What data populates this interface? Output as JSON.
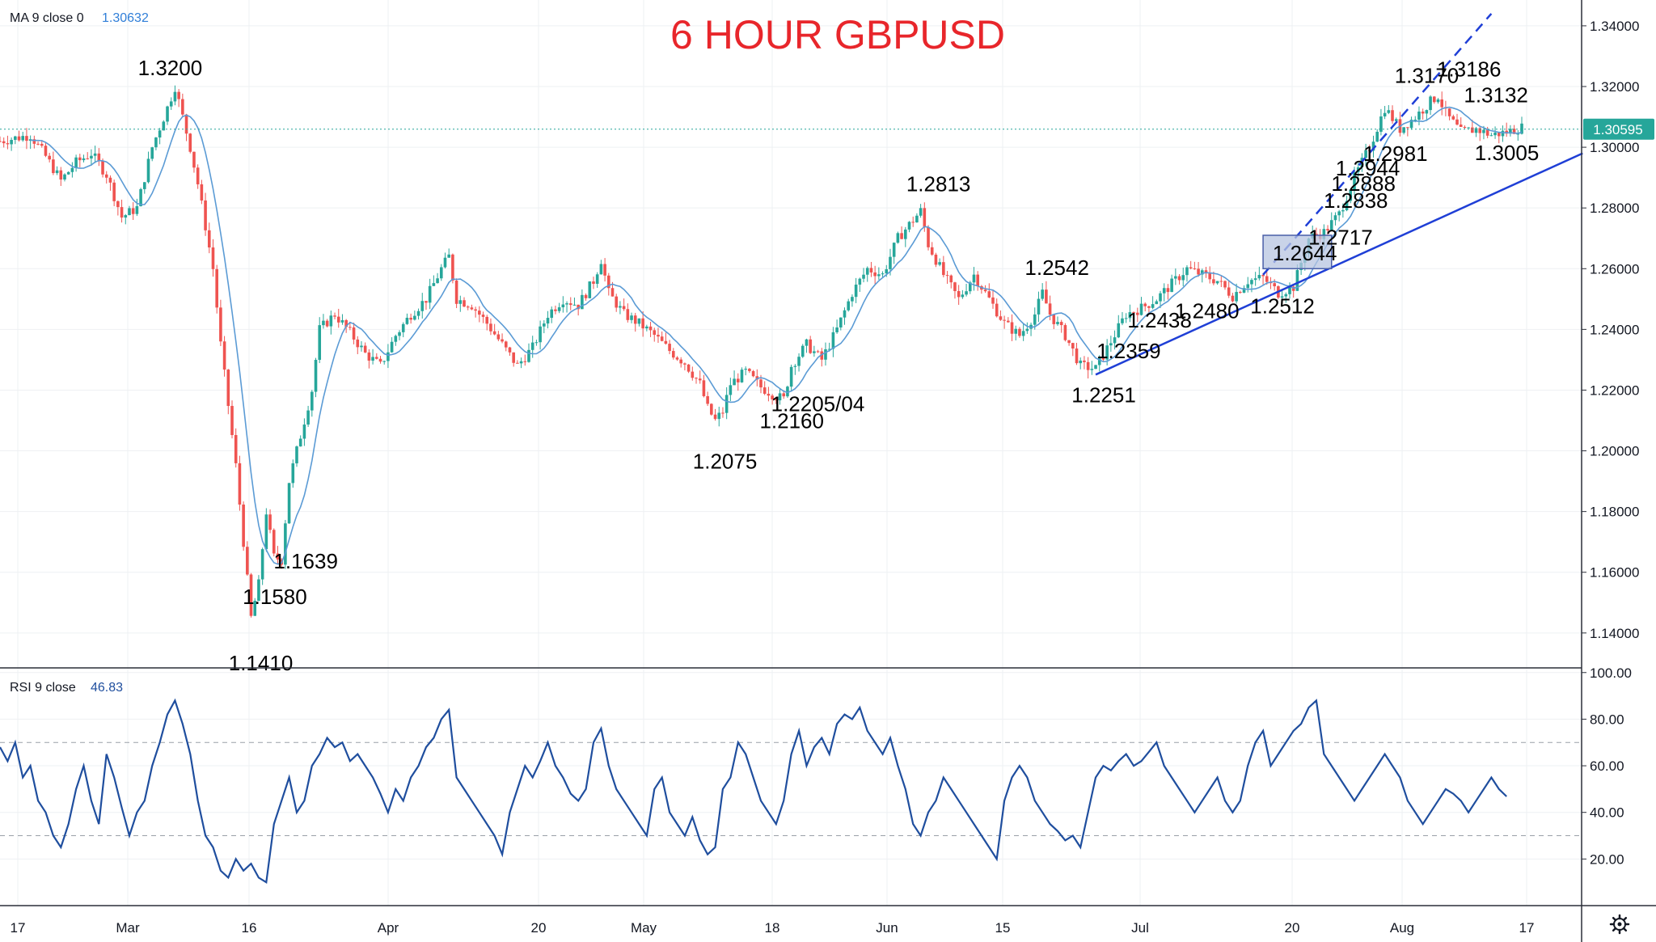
{
  "chart_data": {
    "type": "candlestick",
    "title": "6 HOUR GBPUSD",
    "symbol": "GBPUSD",
    "timeframe": "6 hour",
    "price_axis": {
      "ticks": [
        "1.34000",
        "1.32000",
        "1.30000",
        "1.28000",
        "1.26000",
        "1.24000",
        "1.22000",
        "1.20000",
        "1.18000",
        "1.16000",
        "1.14000"
      ],
      "range": [
        1.1285,
        1.3485
      ],
      "last_price": "1.30595"
    },
    "time_axis": {
      "labels": [
        "17",
        "Mar",
        "16",
        "Apr",
        "20",
        "May",
        "18",
        "Jun",
        "15",
        "Jul",
        "20",
        "Aug",
        "17"
      ]
    },
    "ma_legend": {
      "label": "MA 9 close 0",
      "value": "1.30632"
    },
    "rsi": {
      "legend_label": "RSI 9 close",
      "legend_value": "46.83",
      "ticks": [
        "100.00",
        "80.00",
        "60.00",
        "40.00",
        "20.00"
      ],
      "range": [
        0,
        102
      ],
      "levels": [
        70,
        30
      ]
    },
    "price_path": [
      [
        0,
        1.302
      ],
      [
        4,
        1.304
      ],
      [
        6,
        1.297
      ],
      [
        8,
        1.289
      ],
      [
        10,
        1.295
      ],
      [
        12,
        1.298
      ],
      [
        14,
        1.291
      ],
      [
        16,
        1.277
      ],
      [
        18,
        1.28
      ],
      [
        20,
        1.3
      ],
      [
        22,
        1.313
      ],
      [
        23,
        1.32
      ],
      [
        24,
        1.31
      ],
      [
        25,
        1.3
      ],
      [
        26,
        1.288
      ],
      [
        28,
        1.26
      ],
      [
        29,
        1.235
      ],
      [
        30,
        1.215
      ],
      [
        31,
        1.195
      ],
      [
        32,
        1.17
      ],
      [
        33,
        1.145
      ],
      [
        34,
        1.156
      ],
      [
        35,
        1.18
      ],
      [
        36,
        1.165
      ],
      [
        37,
        1.164
      ],
      [
        38,
        1.19
      ],
      [
        40,
        1.21
      ],
      [
        41,
        1.22
      ],
      [
        42,
        1.24
      ],
      [
        44,
        1.245
      ],
      [
        46,
        1.239
      ],
      [
        48,
        1.232
      ],
      [
        50,
        1.228
      ],
      [
        52,
        1.238
      ],
      [
        54,
        1.245
      ],
      [
        56,
        1.25
      ],
      [
        58,
        1.26
      ],
      [
        59,
        1.264
      ],
      [
        60,
        1.25
      ],
      [
        62,
        1.248
      ],
      [
        64,
        1.242
      ],
      [
        66,
        1.235
      ],
      [
        68,
        1.228
      ],
      [
        70,
        1.234
      ],
      [
        72,
        1.245
      ],
      [
        74,
        1.25
      ],
      [
        76,
        1.248
      ],
      [
        78,
        1.256
      ],
      [
        79,
        1.263
      ],
      [
        80,
        1.252
      ],
      [
        82,
        1.245
      ],
      [
        84,
        1.242
      ],
      [
        86,
        1.238
      ],
      [
        88,
        1.233
      ],
      [
        90,
        1.229
      ],
      [
        92,
        1.222
      ],
      [
        93,
        1.214
      ],
      [
        94,
        1.21
      ],
      [
        95,
        1.213
      ],
      [
        96,
        1.222
      ],
      [
        98,
        1.226
      ],
      [
        100,
        1.221
      ],
      [
        102,
        1.218
      ],
      [
        103,
        1.217
      ],
      [
        104,
        1.228
      ],
      [
        106,
        1.235
      ],
      [
        108,
        1.23
      ],
      [
        110,
        1.24
      ],
      [
        112,
        1.252
      ],
      [
        114,
        1.26
      ],
      [
        116,
        1.258
      ],
      [
        118,
        1.27
      ],
      [
        120,
        1.276
      ],
      [
        121,
        1.279
      ],
      [
        122,
        1.268
      ],
      [
        124,
        1.258
      ],
      [
        126,
        1.25
      ],
      [
        128,
        1.258
      ],
      [
        130,
        1.25
      ],
      [
        132,
        1.242
      ],
      [
        134,
        1.238
      ],
      [
        136,
        1.245
      ],
      [
        137,
        1.252
      ],
      [
        138,
        1.245
      ],
      [
        140,
        1.238
      ],
      [
        142,
        1.228
      ],
      [
        144,
        1.227
      ],
      [
        146,
        1.236
      ],
      [
        148,
        1.245
      ],
      [
        150,
        1.247
      ],
      [
        152,
        1.25
      ],
      [
        154,
        1.255
      ],
      [
        156,
        1.26
      ],
      [
        158,
        1.258
      ],
      [
        160,
        1.256
      ],
      [
        162,
        1.251
      ],
      [
        164,
        1.256
      ],
      [
        166,
        1.257
      ],
      [
        168,
        1.252
      ],
      [
        170,
        1.254
      ],
      [
        172,
        1.27
      ],
      [
        174,
        1.272
      ],
      [
        176,
        1.278
      ],
      [
        178,
        1.29
      ],
      [
        180,
        1.3
      ],
      [
        182,
        1.313
      ],
      [
        184,
        1.306
      ],
      [
        186,
        1.31
      ],
      [
        188,
        1.315
      ],
      [
        189,
        1.317
      ],
      [
        190,
        1.311
      ],
      [
        192,
        1.305
      ],
      [
        194,
        1.306
      ],
      [
        196,
        1.304
      ],
      [
        198,
        1.305
      ],
      [
        200,
        1.3065
      ]
    ],
    "rsi_path": [
      [
        0,
        68
      ],
      [
        1,
        62
      ],
      [
        2,
        70
      ],
      [
        3,
        55
      ],
      [
        4,
        60
      ],
      [
        5,
        45
      ],
      [
        6,
        40
      ],
      [
        7,
        30
      ],
      [
        8,
        25
      ],
      [
        9,
        35
      ],
      [
        10,
        50
      ],
      [
        11,
        60
      ],
      [
        12,
        45
      ],
      [
        13,
        35
      ],
      [
        14,
        65
      ],
      [
        15,
        55
      ],
      [
        16,
        42
      ],
      [
        17,
        30
      ],
      [
        18,
        40
      ],
      [
        19,
        45
      ],
      [
        20,
        60
      ],
      [
        21,
        70
      ],
      [
        22,
        82
      ],
      [
        23,
        88
      ],
      [
        24,
        78
      ],
      [
        25,
        65
      ],
      [
        26,
        45
      ],
      [
        27,
        30
      ],
      [
        28,
        25
      ],
      [
        29,
        15
      ],
      [
        30,
        12
      ],
      [
        31,
        20
      ],
      [
        32,
        15
      ],
      [
        33,
        18
      ],
      [
        34,
        12
      ],
      [
        35,
        10
      ],
      [
        36,
        35
      ],
      [
        37,
        45
      ],
      [
        38,
        55
      ],
      [
        39,
        40
      ],
      [
        40,
        45
      ],
      [
        41,
        60
      ],
      [
        42,
        65
      ],
      [
        43,
        72
      ],
      [
        44,
        68
      ],
      [
        45,
        70
      ],
      [
        46,
        62
      ],
      [
        47,
        65
      ],
      [
        48,
        60
      ],
      [
        49,
        55
      ],
      [
        50,
        48
      ],
      [
        51,
        40
      ],
      [
        52,
        50
      ],
      [
        53,
        45
      ],
      [
        54,
        55
      ],
      [
        55,
        60
      ],
      [
        56,
        68
      ],
      [
        57,
        72
      ],
      [
        58,
        80
      ],
      [
        59,
        84
      ],
      [
        60,
        55
      ],
      [
        61,
        50
      ],
      [
        62,
        45
      ],
      [
        63,
        40
      ],
      [
        64,
        35
      ],
      [
        65,
        30
      ],
      [
        66,
        22
      ],
      [
        67,
        40
      ],
      [
        68,
        50
      ],
      [
        69,
        60
      ],
      [
        70,
        55
      ],
      [
        71,
        62
      ],
      [
        72,
        70
      ],
      [
        73,
        60
      ],
      [
        74,
        55
      ],
      [
        75,
        48
      ],
      [
        76,
        45
      ],
      [
        77,
        50
      ],
      [
        78,
        70
      ],
      [
        79,
        76
      ],
      [
        80,
        60
      ],
      [
        81,
        50
      ],
      [
        82,
        45
      ],
      [
        83,
        40
      ],
      [
        84,
        35
      ],
      [
        85,
        30
      ],
      [
        86,
        50
      ],
      [
        87,
        55
      ],
      [
        88,
        40
      ],
      [
        89,
        35
      ],
      [
        90,
        30
      ],
      [
        91,
        38
      ],
      [
        92,
        28
      ],
      [
        93,
        22
      ],
      [
        94,
        25
      ],
      [
        95,
        50
      ],
      [
        96,
        55
      ],
      [
        97,
        70
      ],
      [
        98,
        65
      ],
      [
        99,
        55
      ],
      [
        100,
        45
      ],
      [
        101,
        40
      ],
      [
        102,
        35
      ],
      [
        103,
        45
      ],
      [
        104,
        65
      ],
      [
        105,
        75
      ],
      [
        106,
        60
      ],
      [
        107,
        68
      ],
      [
        108,
        72
      ],
      [
        109,
        65
      ],
      [
        110,
        78
      ],
      [
        111,
        82
      ],
      [
        112,
        80
      ],
      [
        113,
        85
      ],
      [
        114,
        75
      ],
      [
        115,
        70
      ],
      [
        116,
        65
      ],
      [
        117,
        72
      ],
      [
        118,
        60
      ],
      [
        119,
        50
      ],
      [
        120,
        35
      ],
      [
        121,
        30
      ],
      [
        122,
        40
      ],
      [
        123,
        45
      ],
      [
        124,
        55
      ],
      [
        125,
        50
      ],
      [
        126,
        45
      ],
      [
        127,
        40
      ],
      [
        128,
        35
      ],
      [
        129,
        30
      ],
      [
        130,
        25
      ],
      [
        131,
        20
      ],
      [
        132,
        45
      ],
      [
        133,
        55
      ],
      [
        134,
        60
      ],
      [
        135,
        55
      ],
      [
        136,
        45
      ],
      [
        137,
        40
      ],
      [
        138,
        35
      ],
      [
        139,
        32
      ],
      [
        140,
        28
      ],
      [
        141,
        30
      ],
      [
        142,
        25
      ],
      [
        143,
        40
      ],
      [
        144,
        55
      ],
      [
        145,
        60
      ],
      [
        146,
        58
      ],
      [
        147,
        62
      ],
      [
        148,
        65
      ],
      [
        149,
        60
      ],
      [
        150,
        62
      ],
      [
        151,
        66
      ],
      [
        152,
        70
      ],
      [
        153,
        60
      ],
      [
        154,
        55
      ],
      [
        155,
        50
      ],
      [
        156,
        45
      ],
      [
        157,
        40
      ],
      [
        158,
        45
      ],
      [
        159,
        50
      ],
      [
        160,
        55
      ],
      [
        161,
        45
      ],
      [
        162,
        40
      ],
      [
        163,
        45
      ],
      [
        164,
        60
      ],
      [
        165,
        70
      ],
      [
        166,
        75
      ],
      [
        167,
        60
      ],
      [
        168,
        65
      ],
      [
        169,
        70
      ],
      [
        170,
        75
      ],
      [
        171,
        78
      ],
      [
        172,
        85
      ],
      [
        173,
        88
      ],
      [
        174,
        65
      ],
      [
        175,
        60
      ],
      [
        176,
        55
      ],
      [
        177,
        50
      ],
      [
        178,
        45
      ],
      [
        179,
        50
      ],
      [
        180,
        55
      ],
      [
        181,
        60
      ],
      [
        182,
        65
      ],
      [
        183,
        60
      ],
      [
        184,
        55
      ],
      [
        185,
        45
      ],
      [
        186,
        40
      ],
      [
        187,
        35
      ],
      [
        188,
        40
      ],
      [
        189,
        45
      ],
      [
        190,
        50
      ],
      [
        191,
        48
      ],
      [
        192,
        45
      ],
      [
        193,
        40
      ],
      [
        194,
        45
      ],
      [
        195,
        50
      ],
      [
        196,
        55
      ],
      [
        197,
        50
      ],
      [
        198,
        46.83
      ]
    ],
    "annotations": [
      {
        "text": "1.3200",
        "x": 23,
        "y": 1.32
      },
      {
        "text": "1.1639",
        "x": 37,
        "y": 1.1639
      },
      {
        "text": "1.1580",
        "x": 34,
        "y": 1.158
      },
      {
        "text": "1.1410",
        "x": 33,
        "y": 1.141
      },
      {
        "text": "1.2075",
        "x": 94,
        "y": 1.2075
      },
      {
        "text": "1.2160",
        "x": 103,
        "y": 1.216
      },
      {
        "text": "1.2205/04",
        "x": 106,
        "y": 1.2205
      },
      {
        "text": "1.2813",
        "x": 121,
        "y": 1.2813
      },
      {
        "text": "1.2542",
        "x": 137,
        "y": 1.2542
      },
      {
        "text": "1.2251",
        "x": 144,
        "y": 1.2251
      },
      {
        "text": "1.2359",
        "x": 146,
        "y": 1.2359
      },
      {
        "text": "1.2438",
        "x": 149,
        "y": 1.2438
      },
      {
        "text": "1.2480",
        "x": 158,
        "y": 1.248
      },
      {
        "text": "1.2512",
        "x": 166,
        "y": 1.2512
      },
      {
        "text": "1.2644",
        "x": 170,
        "y": 1.2644
      },
      {
        "text": "1.2717",
        "x": 173,
        "y": 1.2717
      },
      {
        "text": "1.2838",
        "x": 175,
        "y": 1.2838
      },
      {
        "text": "1.2888",
        "x": 176,
        "y": 1.2888
      },
      {
        "text": "1.2944",
        "x": 177,
        "y": 1.2944
      },
      {
        "text": "1.2981",
        "x": 180,
        "y": 1.2981
      },
      {
        "text": "1.3170",
        "x": 189,
        "y": 1.317
      },
      {
        "text": "1.3186",
        "x": 192,
        "y": 1.3186
      },
      {
        "text": "1.3132",
        "x": 193,
        "y": 1.3132
      },
      {
        "text": "1.3005",
        "x": 194,
        "y": 1.3005
      }
    ],
    "trendlines": [
      {
        "style": "solid",
        "from": [
          144,
          1.2251
        ],
        "to": [
          208,
          1.298
        ]
      },
      {
        "style": "dashed",
        "from": [
          166,
          1.258
        ],
        "to": [
          196,
          1.344
        ]
      }
    ],
    "highlight_box": {
      "x": [
        166,
        175
      ],
      "y": [
        1.26,
        1.271
      ]
    },
    "grid": true,
    "colors": {
      "up": "#26a69a",
      "down": "#ef5350",
      "ma": "#5b9bd5",
      "rsi": "#1f4e9e",
      "trendline": "#1f3fd6",
      "title": "#e8262b",
      "price_tag": "#26a69a",
      "box_fill": "#b7c4e0",
      "box_stroke": "#4a5fa8"
    }
  },
  "footer": {
    "settings_icon": "gear-icon"
  }
}
